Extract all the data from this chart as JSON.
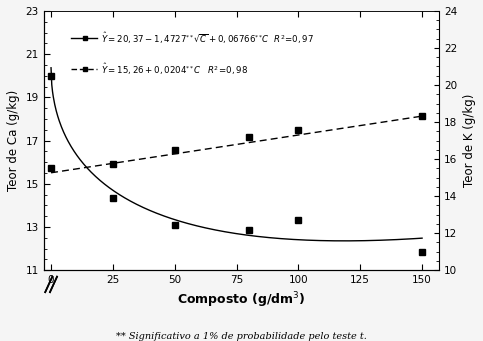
{
  "ca_data_x": [
    0,
    25,
    50,
    80,
    100,
    150
  ],
  "ca_data_y": [
    20.0,
    14.35,
    13.1,
    12.85,
    13.3,
    11.85
  ],
  "k_data_x": [
    0,
    25,
    50,
    80,
    100,
    150
  ],
  "k_data_y": [
    15.5,
    15.75,
    16.49,
    17.2,
    17.55,
    18.32
  ],
  "xlabel": "Composto (g/dm$^3$)",
  "ylabel_left": "Teor de Ca (g/kg)",
  "ylabel_right": "Teor de K (g/kg)",
  "footnote": "** Significativo a 1% de probabilidade pelo teste t.",
  "xlim": [
    -3,
    157
  ],
  "ylim_left": [
    11,
    23
  ],
  "ylim_right": [
    10,
    24
  ],
  "xticks": [
    0,
    25,
    50,
    75,
    100,
    125,
    150
  ],
  "yticks_left": [
    11,
    13,
    15,
    17,
    19,
    21,
    23
  ],
  "yticks_right": [
    10,
    12,
    14,
    16,
    18,
    20,
    22,
    24
  ],
  "bg_color": "#f5f5f5",
  "plot_bg": "#ffffff"
}
